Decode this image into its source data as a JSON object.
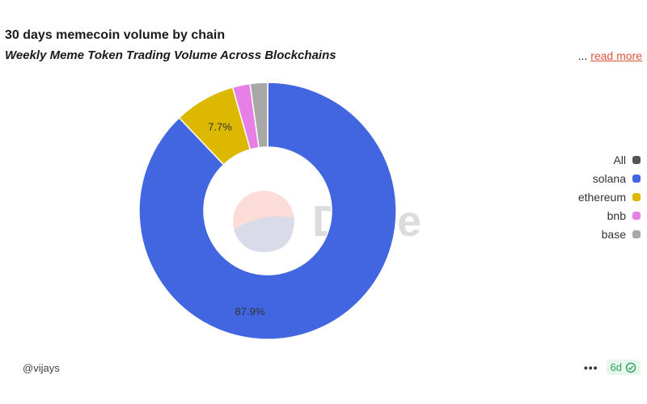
{
  "header": {
    "title": "30 days memecoin volume by chain",
    "subtitle": "Weekly Meme Token Trading Volume Across Blockchains",
    "read_more_prefix": "...",
    "read_more_label": "read more"
  },
  "watermark": "Dune",
  "footer": {
    "author": "@vijays",
    "more_label": "•••",
    "age_badge": "6d",
    "check_icon": "check-circle-icon"
  },
  "colors": {
    "accent_link": "#e0533a",
    "badge_bg": "#e6f7ec",
    "badge_text": "#2f9e5a"
  },
  "legend": [
    {
      "label": "All",
      "color": "#555555"
    },
    {
      "label": "solana",
      "color": "#4166e0"
    },
    {
      "label": "ethereum",
      "color": "#dcb800"
    },
    {
      "label": "bnb",
      "color": "#e680e6"
    },
    {
      "label": "base",
      "color": "#a8a8a8"
    }
  ],
  "chart_data": {
    "type": "pie",
    "donut": true,
    "start_angle_deg": 0,
    "direction": "clockwise",
    "slices": [
      {
        "label": "solana",
        "value": 87.9,
        "color": "#4166e0",
        "data_label": "87.9%"
      },
      {
        "label": "ethereum",
        "value": 7.7,
        "color": "#dcb800",
        "data_label": "7.7%"
      },
      {
        "label": "bnb",
        "value": 2.2,
        "color": "#e680e6",
        "data_label": ""
      },
      {
        "label": "base",
        "value": 2.2,
        "color": "#a8a8a8",
        "data_label": ""
      }
    ],
    "title": "30 days memecoin volume by chain",
    "subtitle": "Weekly Meme Token Trading Volume Across Blockchains",
    "legend_position": "right"
  }
}
